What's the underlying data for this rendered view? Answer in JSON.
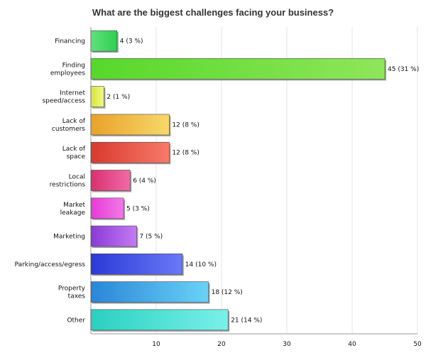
{
  "chart_data": {
    "type": "bar",
    "orientation": "horizontal",
    "title": "What are the biggest challenges facing your business?",
    "xlim": [
      0,
      50
    ],
    "x_ticks": [
      10,
      20,
      30,
      40,
      50
    ],
    "grid": true,
    "bars": [
      {
        "label": [
          "Financing"
        ],
        "value": 4,
        "value_label": "4 (3 %)",
        "color_start": "#5fe27a",
        "color_end": "#2fcf52"
      },
      {
        "label": [
          "Finding",
          "employees"
        ],
        "value": 45,
        "value_label": "45 (31 %)",
        "color_start": "#57d82a",
        "color_end": "#8ee65a"
      },
      {
        "label": [
          "Internet",
          "speed/access"
        ],
        "value": 2,
        "value_label": "2 (1 %)",
        "color_start": "#d6e63a",
        "color_end": "#f2f78a"
      },
      {
        "label": [
          "Lack of",
          "customers"
        ],
        "value": 12,
        "value_label": "12 (8 %)",
        "color_start": "#e8a22a",
        "color_end": "#f7d86a"
      },
      {
        "label": [
          "Lack of",
          "space"
        ],
        "value": 12,
        "value_label": "12 (8 %)",
        "color_start": "#d83a2e",
        "color_end": "#f77a6a"
      },
      {
        "label": [
          "Local",
          "restrictions"
        ],
        "value": 6,
        "value_label": "6 (4 %)",
        "color_start": "#d8306e",
        "color_end": "#f26aa8"
      },
      {
        "label": [
          "Market",
          "leakage"
        ],
        "value": 5,
        "value_label": "5 (3 %)",
        "color_start": "#e63ad6",
        "color_end": "#f27ae8"
      },
      {
        "label": [
          "Marketing"
        ],
        "value": 7,
        "value_label": "7 (5 %)",
        "color_start": "#8a3ad6",
        "color_end": "#c47af2"
      },
      {
        "label": [
          "Parking/access/egress"
        ],
        "value": 14,
        "value_label": "14 (10 %)",
        "color_start": "#2a3ad6",
        "color_end": "#6a7af7"
      },
      {
        "label": [
          "Property",
          "taxes"
        ],
        "value": 18,
        "value_label": "18 (12 %)",
        "color_start": "#2a86d8",
        "color_end": "#6ad2f7"
      },
      {
        "label": [
          "Other"
        ],
        "value": 21,
        "value_label": "21 (14 %)",
        "color_start": "#2ad0c0",
        "color_end": "#7af0ea"
      }
    ]
  }
}
